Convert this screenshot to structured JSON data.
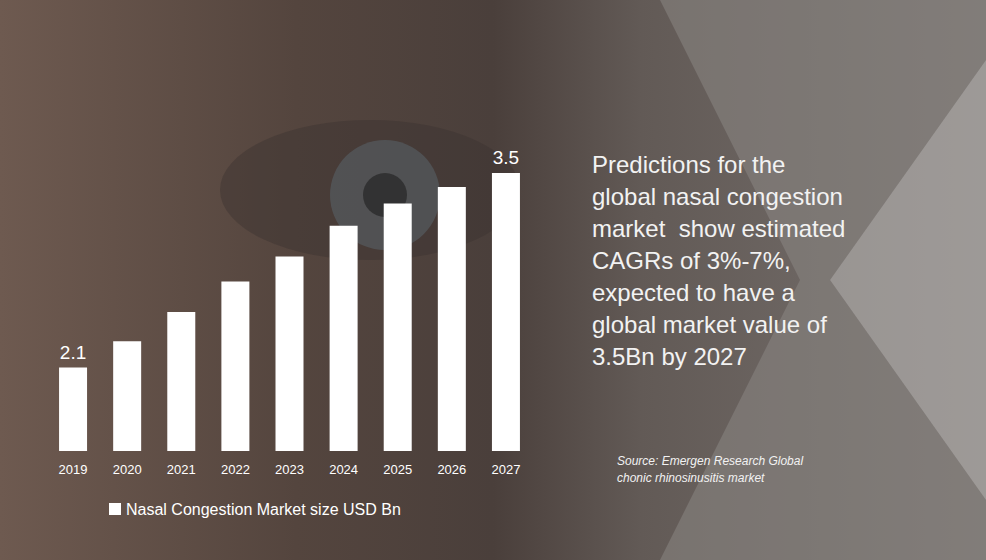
{
  "chart_data": {
    "type": "bar",
    "categories": [
      "2019",
      "2020",
      "2021",
      "2022",
      "2023",
      "2024",
      "2025",
      "2026",
      "2027"
    ],
    "series": [
      {
        "name": "Nasal Congestion Market size USD Bn",
        "color": "#ffffff",
        "values": [
          2.1,
          2.29,
          2.5,
          2.72,
          2.9,
          3.12,
          3.28,
          3.4,
          3.5
        ],
        "value_labels": [
          "2.1",
          null,
          null,
          null,
          null,
          null,
          null,
          null,
          "3.5"
        ]
      }
    ],
    "ylim": [
      1.5,
      3.5
    ],
    "tick_labels": "x",
    "grid": false,
    "legend": "bottom-left",
    "annotation": [
      "Predictions for the",
      "global nasal congestion",
      "market  show estimated",
      "CAGRs of 3%-7%,",
      "expected to have a",
      "global market value of",
      "3.5Bn by 2027"
    ],
    "source": [
      "Source: Emergen Research Global",
      "chonic rhinosinusitis market"
    ]
  }
}
